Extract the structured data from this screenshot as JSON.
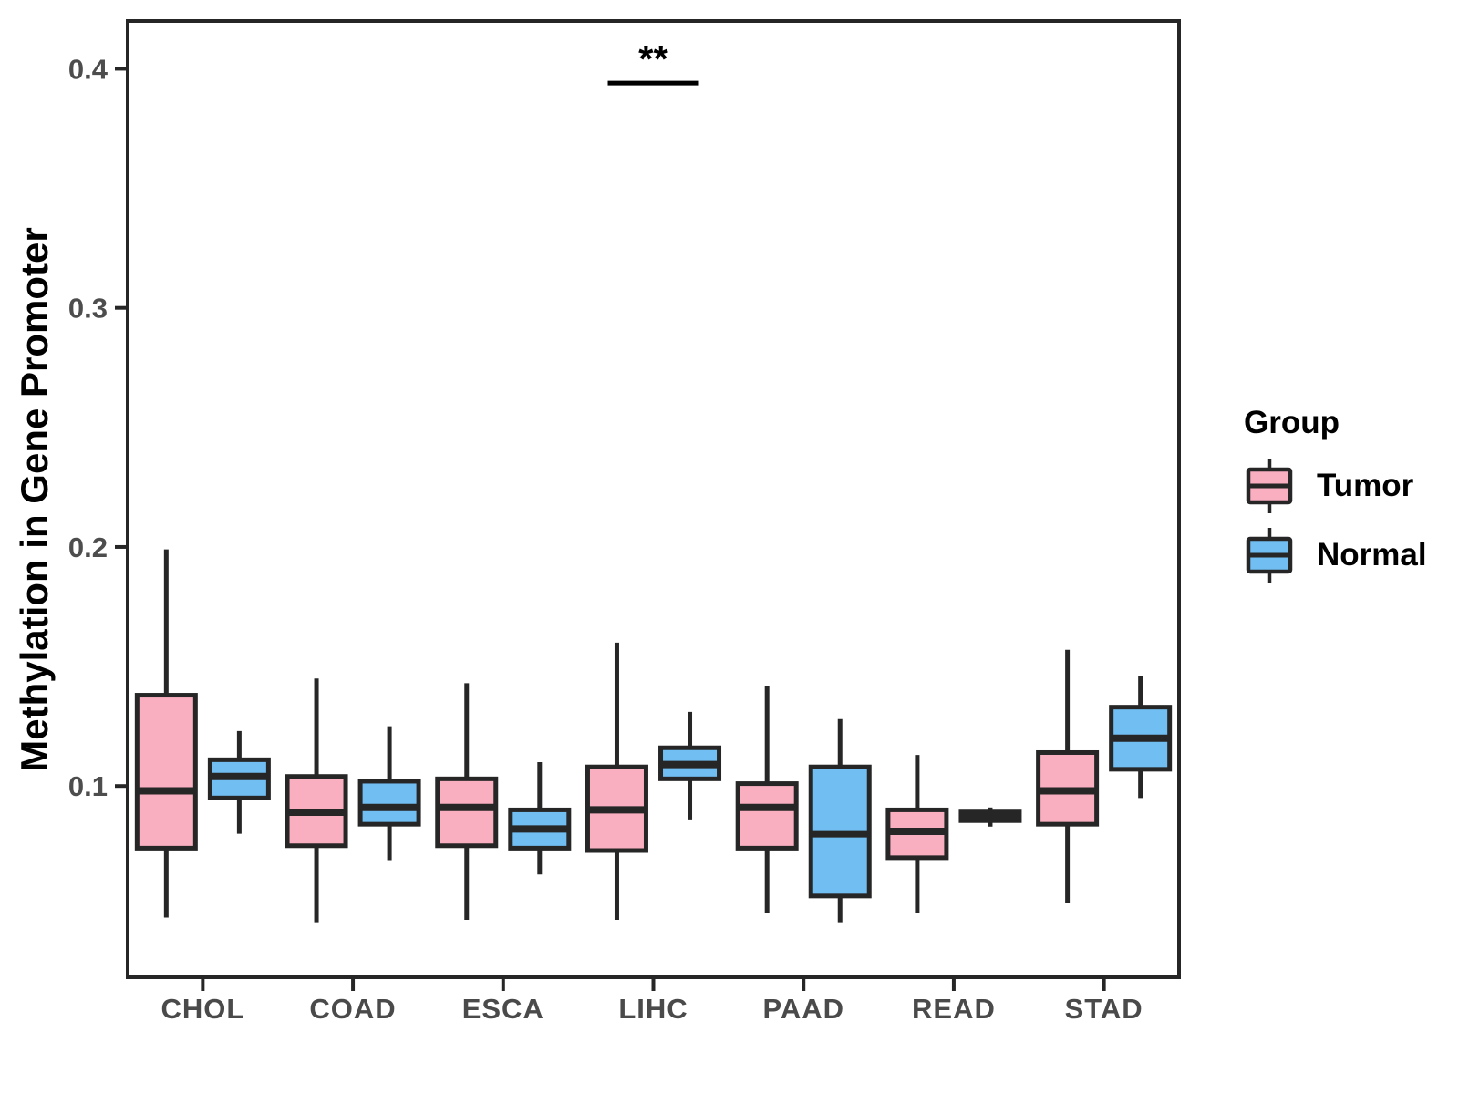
{
  "legend": {
    "title": "Group",
    "items": [
      {
        "label": "Tumor",
        "color": "#F9AFC0"
      },
      {
        "label": "Normal",
        "color": "#70BEF2"
      }
    ]
  },
  "chart_data": {
    "type": "boxplot",
    "title": "",
    "xlabel": "",
    "ylabel": "Methylation in Gene Promoter",
    "categories": [
      "CHOL",
      "COAD",
      "ESCA",
      "LIHC",
      "PAAD",
      "READ",
      "STAD"
    ],
    "yticks": [
      0.1,
      0.2,
      0.3,
      0.4
    ],
    "ytick_labels": [
      "0.1",
      "0.2",
      "0.3",
      "0.4"
    ],
    "ylim": [
      0.02,
      0.42
    ],
    "grid": false,
    "legend_position": "right",
    "colors": {
      "tumor_fill": "#F9AFC0",
      "normal_fill": "#70BEF2",
      "stroke": "#262626",
      "axis_text": "#4d4d4d",
      "axis_title": "#000000"
    },
    "series": [
      {
        "name": "Tumor",
        "color": "#F9AFC0",
        "boxes": [
          {
            "category": "CHOL",
            "min": 0.045,
            "q1": 0.074,
            "median": 0.098,
            "q3": 0.138,
            "max": 0.199
          },
          {
            "category": "COAD",
            "min": 0.043,
            "q1": 0.075,
            "median": 0.089,
            "q3": 0.104,
            "max": 0.145
          },
          {
            "category": "ESCA",
            "min": 0.044,
            "q1": 0.075,
            "median": 0.091,
            "q3": 0.103,
            "max": 0.143
          },
          {
            "category": "LIHC",
            "min": 0.044,
            "q1": 0.073,
            "median": 0.09,
            "q3": 0.108,
            "max": 0.16
          },
          {
            "category": "PAAD",
            "min": 0.047,
            "q1": 0.074,
            "median": 0.091,
            "q3": 0.101,
            "max": 0.142
          },
          {
            "category": "READ",
            "min": 0.047,
            "q1": 0.07,
            "median": 0.081,
            "q3": 0.09,
            "max": 0.113
          },
          {
            "category": "STAD",
            "min": 0.051,
            "q1": 0.084,
            "median": 0.098,
            "q3": 0.114,
            "max": 0.157
          }
        ]
      },
      {
        "name": "Normal",
        "color": "#70BEF2",
        "boxes": [
          {
            "category": "CHOL",
            "min": 0.08,
            "q1": 0.095,
            "median": 0.104,
            "q3": 0.111,
            "max": 0.123
          },
          {
            "category": "COAD",
            "min": 0.069,
            "q1": 0.084,
            "median": 0.091,
            "q3": 0.102,
            "max": 0.125
          },
          {
            "category": "ESCA",
            "min": 0.063,
            "q1": 0.074,
            "median": 0.082,
            "q3": 0.09,
            "max": 0.11
          },
          {
            "category": "LIHC",
            "min": 0.086,
            "q1": 0.103,
            "median": 0.109,
            "q3": 0.116,
            "max": 0.131
          },
          {
            "category": "PAAD",
            "min": 0.043,
            "q1": 0.054,
            "median": 0.08,
            "q3": 0.108,
            "max": 0.128
          },
          {
            "category": "READ",
            "min": 0.083,
            "q1": 0.0855,
            "median": 0.0875,
            "q3": 0.0895,
            "max": 0.091
          },
          {
            "category": "STAD",
            "min": 0.095,
            "q1": 0.107,
            "median": 0.12,
            "q3": 0.133,
            "max": 0.146
          }
        ]
      }
    ],
    "significance": [
      {
        "category": "LIHC",
        "label": "**",
        "y": 0.394
      }
    ]
  }
}
